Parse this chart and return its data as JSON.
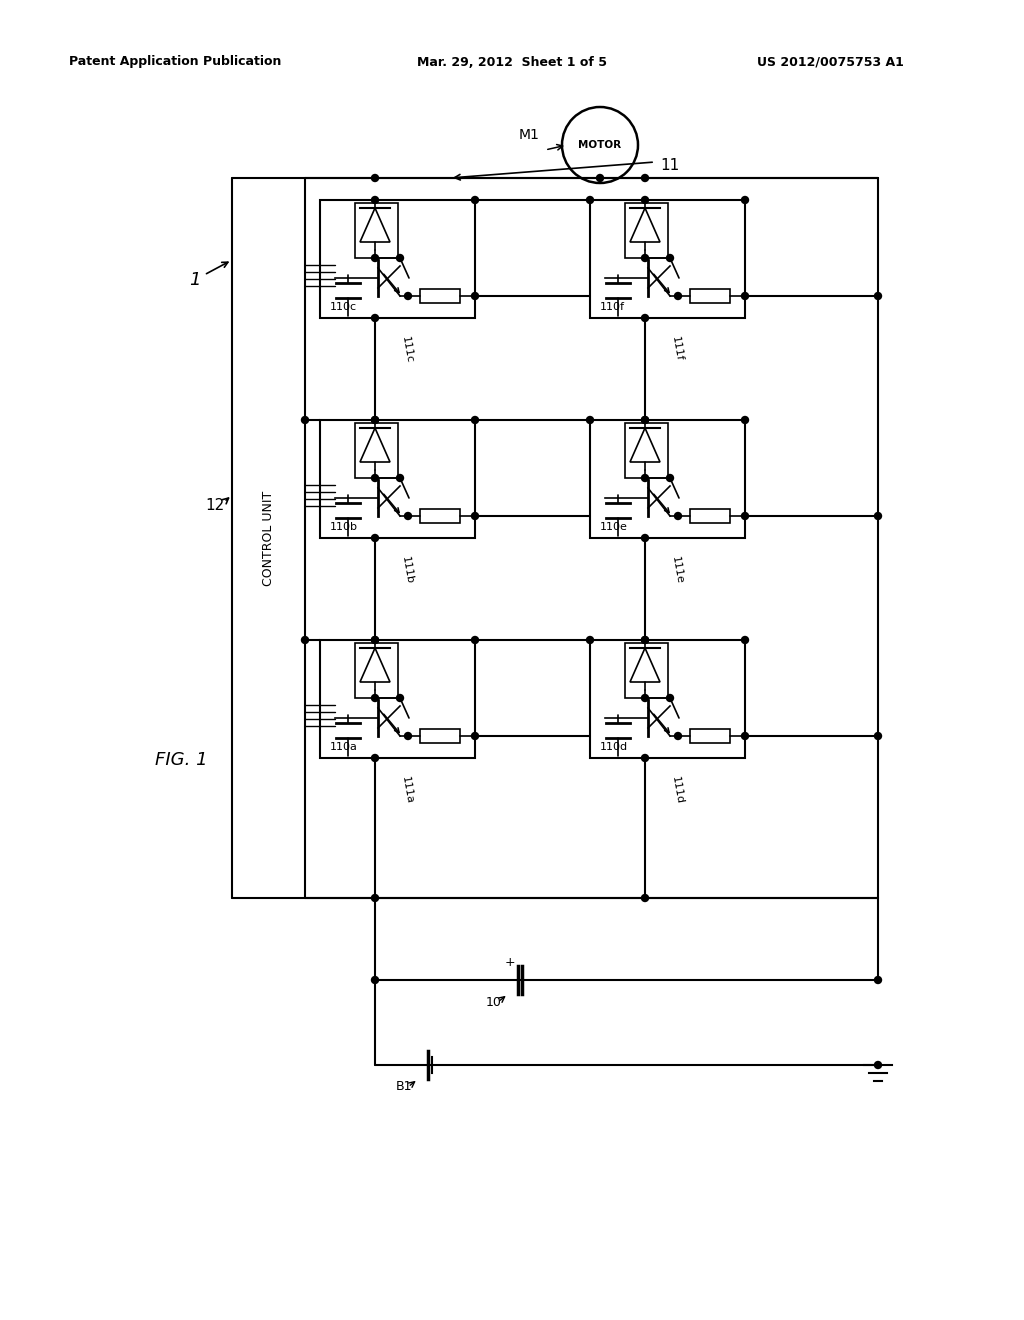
{
  "bg_color": "#ffffff",
  "header_left": "Patent Application Publication",
  "header_mid": "Mar. 29, 2012  Sheet 1 of 5",
  "header_right": "US 2012/0075753 A1",
  "fig_label": "FIG. 1",
  "line_color": "#000000",
  "text_color": "#000000",
  "lw_main": 1.5,
  "lw_thin": 1.2,
  "dot_r": 3.5,
  "cell_labels_left": [
    "110c",
    "110b",
    "110a"
  ],
  "cell_labels_right": [
    "110f",
    "110e",
    "110d"
  ],
  "res_labels_left": [
    "111c",
    "111b",
    "111a"
  ],
  "res_labels_right": [
    "111f",
    "111e",
    "111d"
  ]
}
